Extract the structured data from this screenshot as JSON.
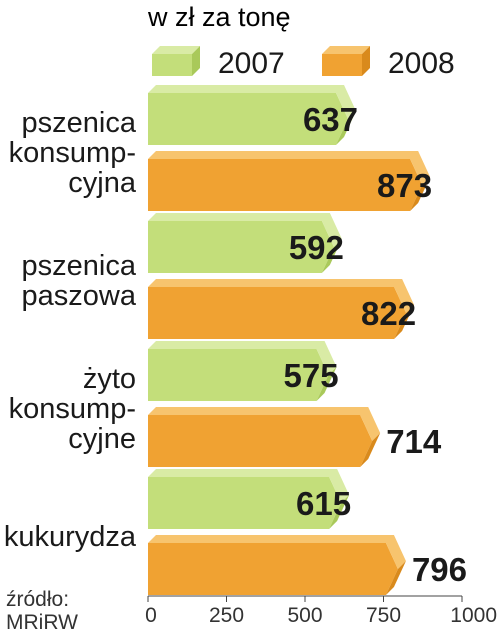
{
  "chart_data": {
    "type": "bar",
    "orientation": "horizontal",
    "unit_label": "w zł za tonę",
    "categories": [
      [
        "pszenica",
        "konsump-",
        "cyjna"
      ],
      [
        "pszenica",
        "paszowa"
      ],
      [
        "żyto",
        "konsump-",
        "cyjne"
      ],
      [
        "kukurydza"
      ]
    ],
    "series": [
      {
        "name": "2007",
        "values": [
          637,
          592,
          575,
          615
        ]
      },
      {
        "name": "2008",
        "values": [
          873,
          822,
          714,
          796
        ]
      }
    ],
    "xlim": [
      0,
      1000
    ],
    "xticks": [
      "0",
      "250",
      "500",
      "750",
      "1000"
    ],
    "source": [
      "źródło:",
      "MRiRW"
    ],
    "legend_position": "top",
    "grid": false
  },
  "colors": {
    "series_2007": {
      "front": "#c3de7a",
      "top": "#d9eba5",
      "side": "#a9c95a"
    },
    "series_2008": {
      "front": "#f0a232",
      "top": "#f7c46e",
      "side": "#d98a1c"
    },
    "text": "#1a1a1a",
    "axis": "#444444"
  }
}
